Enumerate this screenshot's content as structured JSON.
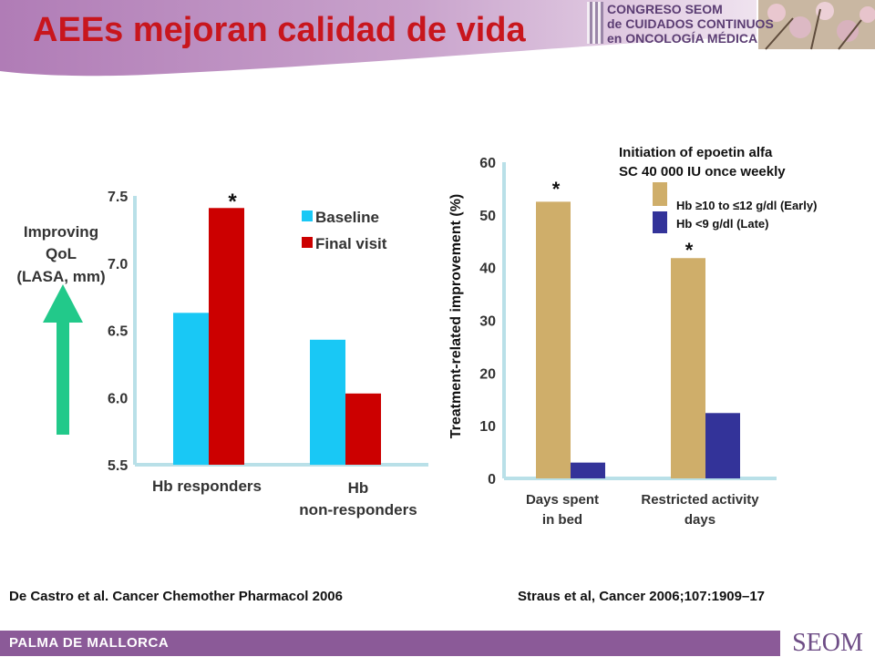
{
  "header": {
    "title": "AEEs  mejoran calidad de vida",
    "congress_lines": [
      "CONGRESO SEOM",
      "de CUIDADOS CONTINUOS",
      "en ONCOLOGÍA MÉDICA"
    ]
  },
  "footer": {
    "location": "PALMA DE MALLORCA",
    "logo": "SEOM"
  },
  "left_panel": {
    "arrow_label_lines": [
      "Improving",
      "QoL",
      "(LASA, mm)"
    ],
    "asterisk": "*",
    "citation": "De Castro et al. Cancer Chemother Pharmacol 2006"
  },
  "right_panel": {
    "legend_title_lines": [
      "Initiation of epoetin alfa",
      "SC 40 000 IU once weekly"
    ],
    "asterisks": [
      "*",
      "*"
    ],
    "citation": "Straus et al, Cancer 2006;107:1909–17"
  },
  "colors": {
    "baseline": "#19c8f5",
    "final": "#cc0000",
    "early": "#cfae6a",
    "late": "#333399",
    "axis": "#b9e0e8",
    "arrow": "#22c98a",
    "header_band": "#b080b0"
  },
  "chart_data": [
    {
      "type": "bar",
      "title": "",
      "categories": [
        "Hb responders",
        "Hb\nnon-responders"
      ],
      "series": [
        {
          "name": "Baseline",
          "values": [
            6.63,
            6.43
          ]
        },
        {
          "name": "Final visit",
          "values": [
            7.41,
            6.03
          ]
        }
      ],
      "xlabel": "",
      "ylabel": "",
      "ylim": [
        5.5,
        7.5
      ],
      "yticks": [
        "5.5",
        "6.0",
        "6.5",
        "7.0",
        "7.5"
      ],
      "legend": "top-right",
      "grid": false
    },
    {
      "type": "bar",
      "title": "",
      "categories": [
        "Days spent\nin bed",
        "Restricted activity\ndays"
      ],
      "series": [
        {
          "name": "Hb ≥10 to ≤12 g/dl (Early)",
          "values": [
            52.5,
            41.8
          ]
        },
        {
          "name": "Hb <9 g/dl (Late)",
          "values": [
            3.0,
            12.4
          ]
        }
      ],
      "xlabel": "",
      "ylabel": "Treatment-related improvement (%)",
      "ylim": [
        0,
        60
      ],
      "yticks": [
        "0",
        "10",
        "20",
        "30",
        "40",
        "50",
        "60"
      ],
      "legend": "top-right",
      "grid": false
    }
  ]
}
